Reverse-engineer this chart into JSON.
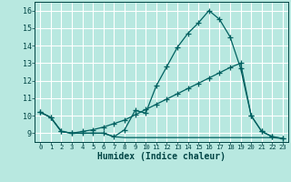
{
  "xlabel": "Humidex (Indice chaleur)",
  "background_color": "#b8e8e0",
  "grid_color": "#ffffff",
  "line_color": "#006060",
  "xlim": [
    -0.5,
    23.5
  ],
  "ylim": [
    8.5,
    16.5
  ],
  "xticks": [
    0,
    1,
    2,
    3,
    4,
    5,
    6,
    7,
    8,
    9,
    10,
    11,
    12,
    13,
    14,
    15,
    16,
    17,
    18,
    19,
    20,
    21,
    22,
    23
  ],
  "yticks": [
    9,
    10,
    11,
    12,
    13,
    14,
    15,
    16
  ],
  "line1_x": [
    0,
    1,
    2,
    3,
    4,
    5,
    6,
    7,
    8,
    9,
    10,
    11,
    12,
    13,
    14,
    15,
    16,
    17,
    18,
    19,
    20,
    21,
    22,
    23
  ],
  "line1_y": [
    10.2,
    9.9,
    9.1,
    9.0,
    9.0,
    9.0,
    9.0,
    8.8,
    9.2,
    10.3,
    10.15,
    11.7,
    12.8,
    13.9,
    14.7,
    15.3,
    16.0,
    15.5,
    14.5,
    12.7,
    10.0,
    9.1,
    8.8,
    8.7
  ],
  "line2_x": [
    0,
    1,
    2,
    3,
    4,
    5,
    6,
    7,
    8,
    9,
    10,
    11,
    12,
    13,
    14,
    15,
    16,
    17,
    18,
    19,
    20,
    21,
    22,
    23
  ],
  "line2_y": [
    10.2,
    9.9,
    9.1,
    9.0,
    9.1,
    9.2,
    9.35,
    9.55,
    9.75,
    10.05,
    10.35,
    10.65,
    10.95,
    11.25,
    11.55,
    11.85,
    12.15,
    12.45,
    12.75,
    13.0,
    10.0,
    9.1,
    8.8,
    8.7
  ],
  "line3_x": [
    0,
    1,
    2,
    3,
    4,
    5,
    6,
    7,
    8,
    9,
    10,
    11,
    12,
    13,
    14,
    15,
    16,
    17,
    18,
    19,
    20,
    21,
    22,
    23
  ],
  "line3_y": [
    10.2,
    9.9,
    9.1,
    9.0,
    9.0,
    9.0,
    9.0,
    8.8,
    8.75,
    8.75,
    8.75,
    8.75,
    8.75,
    8.75,
    8.75,
    8.75,
    8.75,
    8.75,
    8.75,
    8.75,
    8.75,
    8.75,
    8.75,
    8.7
  ]
}
